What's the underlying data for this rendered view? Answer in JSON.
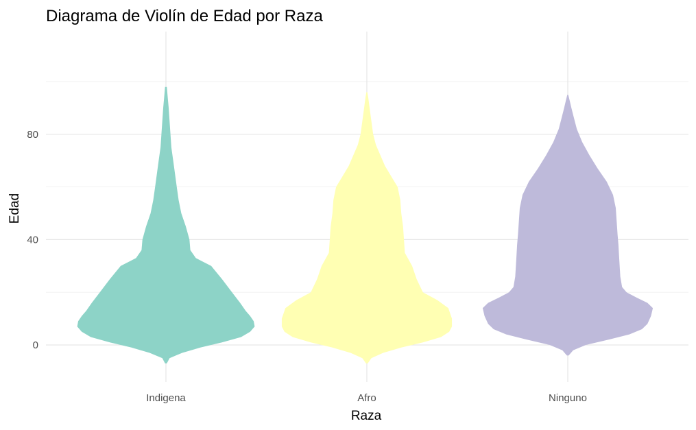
{
  "chart_data": {
    "type": "violin",
    "title": "Diagrama de Violín de Edad por Raza",
    "xlabel": "Raza",
    "ylabel": "Edad",
    "categories": [
      "Indigena",
      "Afro",
      "Ninguno"
    ],
    "colors": [
      "#8dd3c7",
      "#ffffb3",
      "#bebada"
    ],
    "ylim": [
      -13,
      118
    ],
    "yticks": [
      0,
      40,
      80
    ],
    "grid": true,
    "legend": "none",
    "series": [
      {
        "category": "Indigena",
        "min": -7,
        "max": 98,
        "density_profile": [
          [
            -7,
            0.01
          ],
          [
            -5,
            0.04
          ],
          [
            -3,
            0.18
          ],
          [
            -1,
            0.38
          ],
          [
            1,
            0.62
          ],
          [
            3,
            0.83
          ],
          [
            5,
            0.93
          ],
          [
            7,
            0.98
          ],
          [
            9,
            0.97
          ],
          [
            11,
            0.93
          ],
          [
            13,
            0.88
          ],
          [
            16,
            0.82
          ],
          [
            20,
            0.73
          ],
          [
            25,
            0.62
          ],
          [
            30,
            0.5
          ],
          [
            33,
            0.33
          ],
          [
            36,
            0.27
          ],
          [
            40,
            0.26
          ],
          [
            45,
            0.22
          ],
          [
            50,
            0.17
          ],
          [
            55,
            0.14
          ],
          [
            60,
            0.12
          ],
          [
            65,
            0.1
          ],
          [
            70,
            0.08
          ],
          [
            75,
            0.06
          ],
          [
            80,
            0.05
          ],
          [
            85,
            0.04
          ],
          [
            90,
            0.03
          ],
          [
            94,
            0.02
          ],
          [
            98,
            0.01
          ]
        ]
      },
      {
        "category": "Afro",
        "min": -7,
        "max": 96,
        "density_profile": [
          [
            -7,
            0.01
          ],
          [
            -5,
            0.05
          ],
          [
            -3,
            0.18
          ],
          [
            -1,
            0.38
          ],
          [
            1,
            0.62
          ],
          [
            3,
            0.82
          ],
          [
            5,
            0.91
          ],
          [
            7,
            0.94
          ],
          [
            10,
            0.94
          ],
          [
            14,
            0.9
          ],
          [
            17,
            0.78
          ],
          [
            20,
            0.62
          ],
          [
            25,
            0.55
          ],
          [
            30,
            0.5
          ],
          [
            35,
            0.42
          ],
          [
            40,
            0.41
          ],
          [
            45,
            0.4
          ],
          [
            50,
            0.38
          ],
          [
            55,
            0.37
          ],
          [
            60,
            0.34
          ],
          [
            64,
            0.27
          ],
          [
            68,
            0.2
          ],
          [
            72,
            0.15
          ],
          [
            76,
            0.1
          ],
          [
            80,
            0.07
          ],
          [
            85,
            0.05
          ],
          [
            90,
            0.03
          ],
          [
            94,
            0.015
          ],
          [
            96,
            0.005
          ]
        ]
      },
      {
        "category": "Ninguno",
        "min": -4,
        "max": 95,
        "density_profile": [
          [
            -4,
            0.01
          ],
          [
            -2,
            0.06
          ],
          [
            0,
            0.2
          ],
          [
            2,
            0.45
          ],
          [
            4,
            0.68
          ],
          [
            6,
            0.82
          ],
          [
            8,
            0.88
          ],
          [
            11,
            0.92
          ],
          [
            14,
            0.94
          ],
          [
            16,
            0.88
          ],
          [
            18,
            0.76
          ],
          [
            20,
            0.65
          ],
          [
            22,
            0.6
          ],
          [
            26,
            0.58
          ],
          [
            32,
            0.57
          ],
          [
            38,
            0.56
          ],
          [
            42,
            0.55
          ],
          [
            47,
            0.54
          ],
          [
            52,
            0.53
          ],
          [
            57,
            0.5
          ],
          [
            62,
            0.43
          ],
          [
            67,
            0.33
          ],
          [
            72,
            0.24
          ],
          [
            77,
            0.16
          ],
          [
            82,
            0.1
          ],
          [
            86,
            0.07
          ],
          [
            90,
            0.04
          ],
          [
            93,
            0.02
          ],
          [
            95,
            0.005
          ]
        ]
      }
    ]
  }
}
